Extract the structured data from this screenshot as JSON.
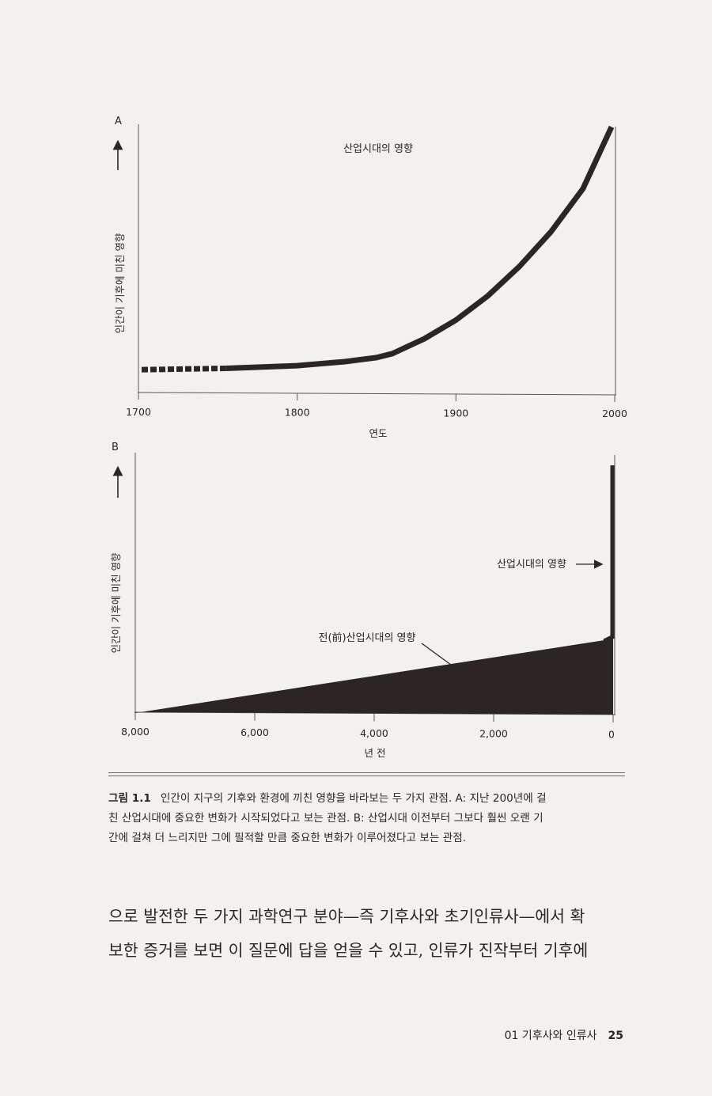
{
  "chart_data": [
    {
      "panel": "A",
      "type": "line",
      "ylabel": "인간이 기후에 미친 영향",
      "xlabel": "연도",
      "xlim": [
        1700,
        2000
      ],
      "ticks": [
        "1700",
        "1800",
        "1900",
        "2000"
      ],
      "tick_values": [
        1700,
        1800,
        1900,
        2000
      ],
      "ylim": [
        0,
        100
      ],
      "annotation": "산업시대의 영향",
      "dashed_until": 1755,
      "x": [
        1702,
        1755,
        1800,
        1830,
        1850,
        1860,
        1880,
        1900,
        1920,
        1940,
        1960,
        1980,
        1998
      ],
      "y": [
        8.5,
        9,
        10,
        11.5,
        13,
        14.5,
        20,
        27,
        36,
        47,
        60,
        76,
        99
      ]
    },
    {
      "panel": "B",
      "type": "area",
      "ylabel": "인간이 기후에 미친 영향",
      "xlabel": "년 전",
      "xlim": [
        8000,
        0
      ],
      "ticks": [
        "8,000",
        "6,000",
        "4,000",
        "2,000",
        "0"
      ],
      "tick_values": [
        8000,
        6000,
        4000,
        2000,
        0
      ],
      "ylim": [
        0,
        100
      ],
      "annotation_industrial": "산업시대의 영향",
      "annotation_preindustrial": "전(前)산업시대의 영향",
      "area_x": [
        8000,
        0
      ],
      "area_y": [
        0,
        30
      ],
      "spike_x": [
        0,
        0
      ],
      "spike_y": [
        30,
        100
      ]
    }
  ],
  "caption": {
    "label": "그림 1.1",
    "line1": "인간이 지구의 기후와 환경에 끼친 영향을 바라보는 두 가지 관점. A: 지난 200년에 걸",
    "line2": "친 산업시대에 중요한 변화가 시작되었다고 보는 관점. B: 산업시대 이전부터 그보다 훨씬 오랜 기",
    "line3": "간에 걸쳐 더 느리지만 그에 필적할 만큼 중요한 변화가 이루어졌다고 보는 관점."
  },
  "body": {
    "line1": "으로 발전한 두 가지 과학연구 분야—즉 기후사와 초기인류사—에서 확",
    "line2": "보한 증거를 보면 이 질문에 답을 얻을 수 있고, 인류가 진작부터 기후에"
  },
  "footer": {
    "chapter": "01 기후사와 인류사",
    "page": "25"
  },
  "colors": {
    "ink": "#2b2523",
    "paper": "#f2f1ee",
    "rule": "#6d6865"
  }
}
